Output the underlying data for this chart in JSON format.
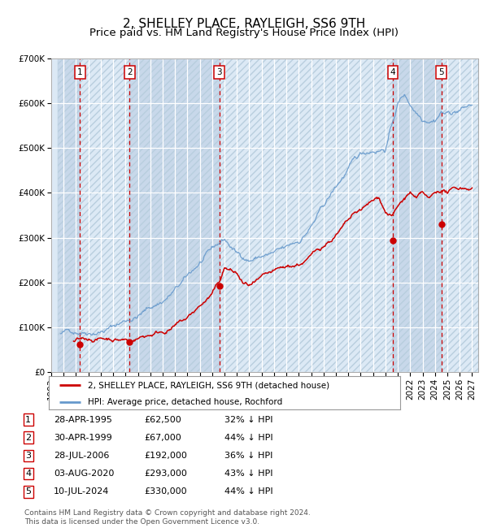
{
  "title": "2, SHELLEY PLACE, RAYLEIGH, SS6 9TH",
  "subtitle": "Price paid vs. HM Land Registry's House Price Index (HPI)",
  "ylim": [
    0,
    700000
  ],
  "yticks": [
    0,
    100000,
    200000,
    300000,
    400000,
    500000,
    600000,
    700000
  ],
  "ytick_labels": [
    "£0",
    "£100K",
    "£200K",
    "£300K",
    "£400K",
    "£500K",
    "£600K",
    "£700K"
  ],
  "xlim_start": 1993.5,
  "xlim_end": 2027.5,
  "bg_color": "#dce9f5",
  "hatch_color": "#c8d8ea",
  "grid_color": "#ffffff",
  "red_color": "#cc0000",
  "blue_color": "#6699cc",
  "sale_dates_year": [
    1995.32,
    1999.33,
    2006.57,
    2020.59,
    2024.52
  ],
  "sale_prices": [
    62500,
    67000,
    192000,
    293000,
    330000
  ],
  "sale_labels": [
    "1",
    "2",
    "3",
    "4",
    "5"
  ],
  "sale_info": [
    {
      "num": "1",
      "date": "28-APR-1995",
      "price": "£62,500",
      "hpi": "32% ↓ HPI"
    },
    {
      "num": "2",
      "date": "30-APR-1999",
      "price": "£67,000",
      "hpi": "44% ↓ HPI"
    },
    {
      "num": "3",
      "date": "28-JUL-2006",
      "price": "£192,000",
      "hpi": "36% ↓ HPI"
    },
    {
      "num": "4",
      "date": "03-AUG-2020",
      "price": "£293,000",
      "hpi": "43% ↓ HPI"
    },
    {
      "num": "5",
      "date": "10-JUL-2024",
      "price": "£330,000",
      "hpi": "44% ↓ HPI"
    }
  ],
  "legend_line1": "2, SHELLEY PLACE, RAYLEIGH, SS6 9TH (detached house)",
  "legend_line2": "HPI: Average price, detached house, Rochford",
  "footer": "Contains HM Land Registry data © Crown copyright and database right 2024.\nThis data is licensed under the Open Government Licence v3.0.",
  "title_fontsize": 11,
  "subtitle_fontsize": 9.5,
  "tick_fontsize": 7.5
}
